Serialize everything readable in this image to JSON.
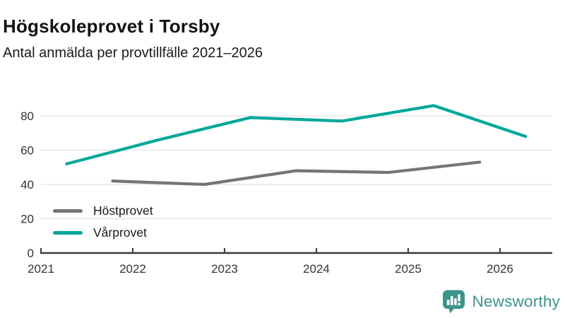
{
  "header": {
    "title": "Högskoleprovet i Torsby",
    "subtitle": "Antal anmälda per provtillfälle 2021–2026"
  },
  "chart_data": {
    "type": "line",
    "title": "Högskoleprovet i Torsby",
    "subtitle": "Antal anmälda per provtillfälle 2021–2026",
    "xlabel": "",
    "ylabel": "",
    "xlim": [
      2021,
      2026.57
    ],
    "ylim": [
      0,
      90
    ],
    "x_ticks": [
      2021,
      2022,
      2023,
      2024,
      2025,
      2026
    ],
    "y_ticks": [
      0,
      20,
      40,
      60,
      80
    ],
    "grid": "horizontal-only",
    "legend_position": "inside-bottom-left",
    "series": [
      {
        "name": "Höstprovet",
        "color": "#757575",
        "points": [
          [
            2021.78,
            42
          ],
          [
            2022.78,
            40
          ],
          [
            2023.78,
            48
          ],
          [
            2024.78,
            47
          ],
          [
            2025.78,
            53
          ]
        ]
      },
      {
        "name": "Vårprovet",
        "color": "#00a79b",
        "points": [
          [
            2021.28,
            52
          ],
          [
            2022.28,
            66
          ],
          [
            2023.28,
            79
          ],
          [
            2024.28,
            77
          ],
          [
            2025.28,
            86
          ],
          [
            2026.28,
            68
          ]
        ]
      }
    ],
    "axis_color": "#3b3b3b",
    "grid_color": "#e2e2e2"
  },
  "branding": {
    "logo_text": "Newsworthy",
    "logo_color": "#3d948a",
    "logo_icon": "bar-chart-speech-bubble-icon"
  }
}
